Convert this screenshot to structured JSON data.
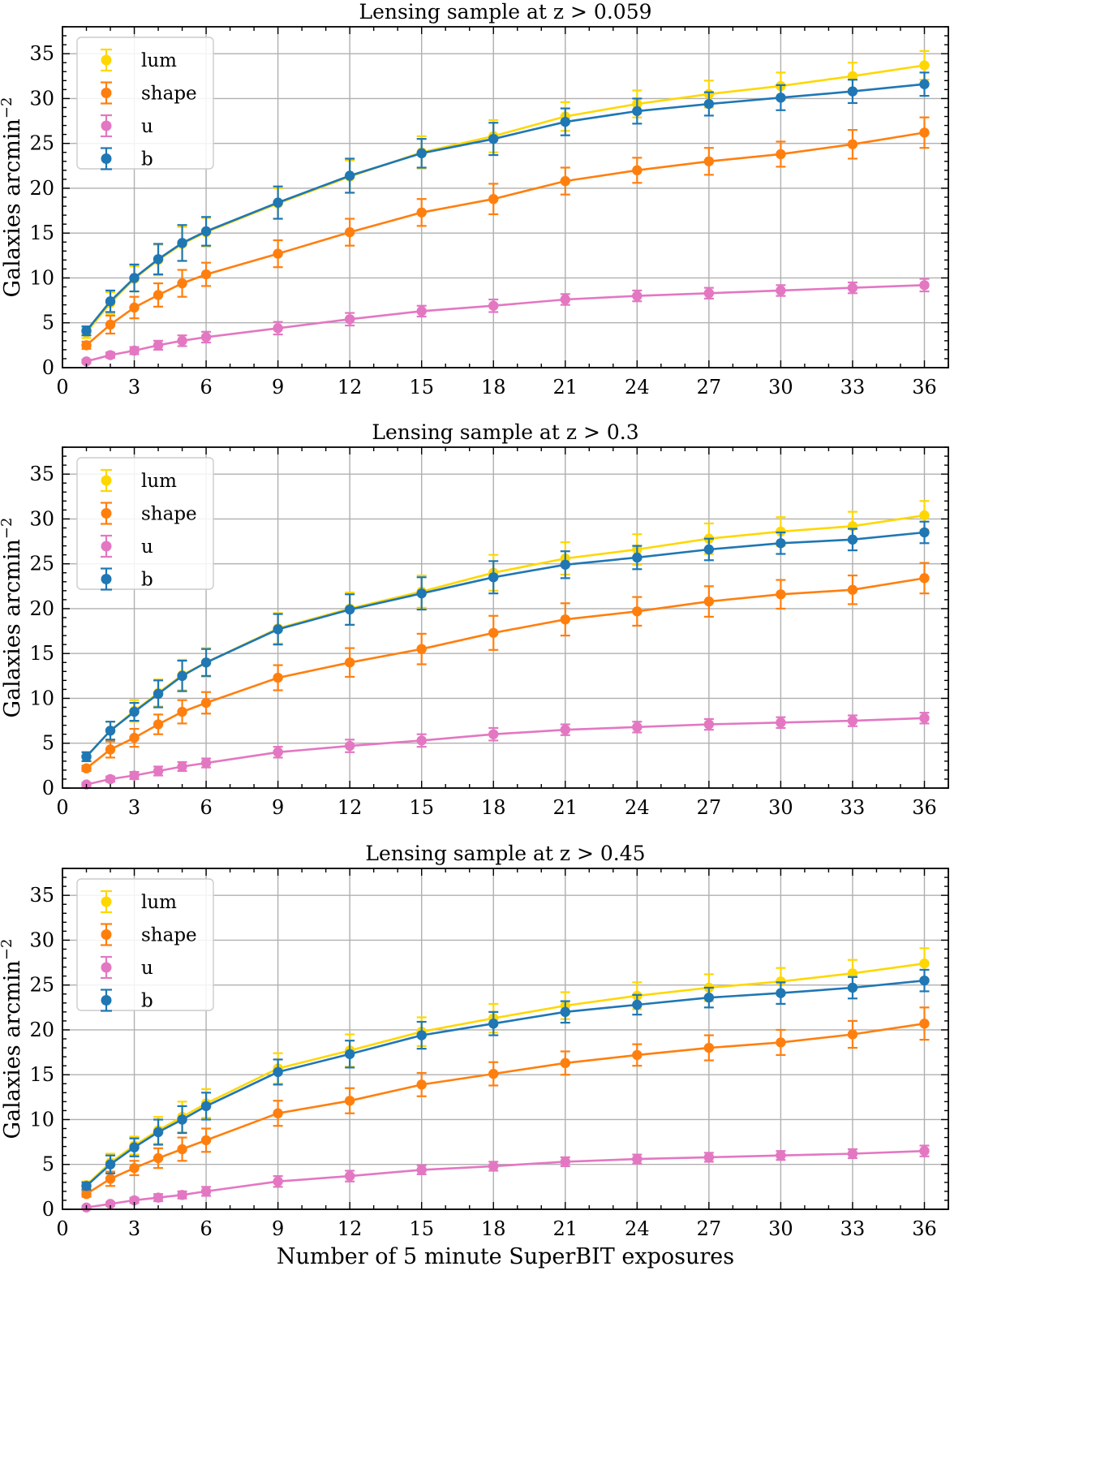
{
  "chart_data": [
    {
      "type": "line",
      "title": "Lensing sample at z > 0.059",
      "xlabel": "",
      "ylabel": "Galaxies arcmin−2",
      "xlim": [
        0,
        37
      ],
      "ylim": [
        0,
        38
      ],
      "xticks": [
        0,
        3,
        6,
        9,
        12,
        15,
        18,
        21,
        24,
        27,
        30,
        33,
        36
      ],
      "yticks": [
        0,
        5,
        10,
        15,
        20,
        25,
        30,
        35
      ],
      "grid": true,
      "legend_position": "top-left",
      "x": [
        1,
        2,
        3,
        4,
        5,
        6,
        9,
        12,
        15,
        18,
        21,
        24,
        27,
        30,
        33,
        36
      ],
      "series": [
        {
          "name": "lum",
          "color": "#FFD700",
          "values": [
            3.9,
            7.2,
            9.9,
            12.0,
            13.8,
            15.1,
            18.3,
            21.3,
            24.0,
            25.8,
            28.0,
            29.4,
            30.5,
            31.4,
            32.5,
            33.7
          ],
          "errors": [
            0.6,
            1.2,
            1.4,
            1.7,
            1.9,
            1.6,
            1.7,
            1.8,
            1.8,
            1.8,
            1.6,
            1.5,
            1.5,
            1.5,
            1.5,
            1.6
          ]
        },
        {
          "name": "shape",
          "color": "#FF7F0E",
          "values": [
            2.5,
            4.8,
            6.7,
            8.1,
            9.4,
            10.4,
            12.7,
            15.1,
            17.3,
            18.8,
            20.8,
            22.0,
            23.0,
            23.8,
            24.9,
            26.2
          ],
          "errors": [
            0.4,
            1.0,
            1.2,
            1.3,
            1.5,
            1.3,
            1.5,
            1.5,
            1.5,
            1.7,
            1.5,
            1.4,
            1.5,
            1.4,
            1.6,
            1.7
          ]
        },
        {
          "name": "u",
          "color": "#E377C2",
          "values": [
            0.7,
            1.4,
            1.9,
            2.5,
            3.0,
            3.4,
            4.4,
            5.4,
            6.3,
            6.9,
            7.6,
            8.0,
            8.3,
            8.6,
            8.9,
            9.2
          ],
          "errors": [
            0.2,
            0.3,
            0.4,
            0.5,
            0.6,
            0.6,
            0.7,
            0.7,
            0.6,
            0.7,
            0.6,
            0.6,
            0.6,
            0.6,
            0.6,
            0.7
          ]
        },
        {
          "name": "b",
          "color": "#1F77B4",
          "values": [
            4.1,
            7.4,
            10.0,
            12.1,
            13.9,
            15.2,
            18.4,
            21.4,
            23.9,
            25.5,
            27.4,
            28.6,
            29.4,
            30.1,
            30.8,
            31.6
          ],
          "errors": [
            0.5,
            1.2,
            1.5,
            1.7,
            2.0,
            1.6,
            1.8,
            1.9,
            1.6,
            1.8,
            1.5,
            1.4,
            1.3,
            1.4,
            1.3,
            1.3
          ]
        }
      ]
    },
    {
      "type": "line",
      "title": "Lensing sample at z > 0.3",
      "xlabel": "",
      "ylabel": "Galaxies arcmin−2",
      "xlim": [
        0,
        37
      ],
      "ylim": [
        0,
        38
      ],
      "xticks": [
        0,
        3,
        6,
        9,
        12,
        15,
        18,
        21,
        24,
        27,
        30,
        33,
        36
      ],
      "yticks": [
        0,
        5,
        10,
        15,
        20,
        25,
        30,
        35
      ],
      "grid": true,
      "legend_position": "top-left",
      "x": [
        1,
        2,
        3,
        4,
        5,
        6,
        9,
        12,
        15,
        18,
        21,
        24,
        27,
        30,
        33,
        36
      ],
      "series": [
        {
          "name": "lum",
          "color": "#FFD700",
          "values": [
            3.5,
            6.4,
            8.6,
            10.6,
            12.6,
            14.0,
            17.8,
            20.0,
            21.9,
            24.0,
            25.6,
            26.6,
            27.8,
            28.6,
            29.2,
            30.4
          ],
          "errors": [
            0.5,
            1.0,
            1.2,
            1.5,
            1.7,
            1.6,
            1.7,
            1.8,
            1.8,
            2.0,
            1.8,
            1.7,
            1.7,
            1.6,
            1.6,
            1.6
          ]
        },
        {
          "name": "shape",
          "color": "#FF7F0E",
          "values": [
            2.2,
            4.3,
            5.6,
            7.1,
            8.5,
            9.5,
            12.3,
            14.0,
            15.5,
            17.3,
            18.8,
            19.7,
            20.8,
            21.6,
            22.1,
            23.4
          ],
          "errors": [
            0.3,
            0.9,
            1.0,
            1.1,
            1.3,
            1.2,
            1.4,
            1.6,
            1.7,
            1.9,
            1.8,
            1.6,
            1.7,
            1.6,
            1.6,
            1.7
          ]
        },
        {
          "name": "u",
          "color": "#E377C2",
          "values": [
            0.4,
            1.0,
            1.4,
            1.9,
            2.4,
            2.8,
            4.0,
            4.7,
            5.3,
            6.0,
            6.5,
            6.8,
            7.1,
            7.3,
            7.5,
            7.8
          ],
          "errors": [
            0.2,
            0.3,
            0.4,
            0.5,
            0.5,
            0.5,
            0.6,
            0.7,
            0.7,
            0.7,
            0.6,
            0.6,
            0.6,
            0.6,
            0.6,
            0.6
          ]
        },
        {
          "name": "b",
          "color": "#1F77B4",
          "values": [
            3.5,
            6.4,
            8.5,
            10.5,
            12.5,
            14.0,
            17.7,
            19.9,
            21.7,
            23.5,
            24.9,
            25.7,
            26.6,
            27.3,
            27.7,
            28.5
          ],
          "errors": [
            0.5,
            1.0,
            1.0,
            1.5,
            1.7,
            1.5,
            1.7,
            1.7,
            1.8,
            1.8,
            1.5,
            1.3,
            1.2,
            1.2,
            1.2,
            1.2
          ]
        }
      ]
    },
    {
      "type": "line",
      "title": "Lensing sample at z > 0.45",
      "xlabel": "Number of 5 minute SuperBIT exposures",
      "ylabel": "Galaxies arcmin−2",
      "xlim": [
        0,
        37
      ],
      "ylim": [
        0,
        38
      ],
      "xticks": [
        0,
        3,
        6,
        9,
        12,
        15,
        18,
        21,
        24,
        27,
        30,
        33,
        36
      ],
      "yticks": [
        0,
        5,
        10,
        15,
        20,
        25,
        30,
        35
      ],
      "grid": true,
      "legend_position": "top-left",
      "x": [
        1,
        2,
        3,
        4,
        5,
        6,
        9,
        12,
        15,
        18,
        21,
        24,
        27,
        30,
        33,
        36
      ],
      "series": [
        {
          "name": "lum",
          "color": "#FFD700",
          "values": [
            2.7,
            5.2,
            7.1,
            8.8,
            10.3,
            11.8,
            15.7,
            17.7,
            19.8,
            21.3,
            22.7,
            23.8,
            24.7,
            25.4,
            26.3,
            27.4
          ],
          "errors": [
            0.4,
            1.0,
            1.0,
            1.5,
            1.7,
            1.6,
            1.7,
            1.8,
            1.6,
            1.6,
            1.5,
            1.5,
            1.5,
            1.5,
            1.5,
            1.7
          ]
        },
        {
          "name": "shape",
          "color": "#FF7F0E",
          "values": [
            1.7,
            3.4,
            4.6,
            5.7,
            6.7,
            7.7,
            10.7,
            12.1,
            13.9,
            15.1,
            16.3,
            17.2,
            18.0,
            18.6,
            19.5,
            20.7
          ],
          "errors": [
            0.3,
            0.8,
            0.8,
            1.1,
            1.3,
            1.3,
            1.4,
            1.4,
            1.3,
            1.3,
            1.3,
            1.2,
            1.4,
            1.4,
            1.5,
            1.8
          ]
        },
        {
          "name": "u",
          "color": "#E377C2",
          "values": [
            0.2,
            0.6,
            1.0,
            1.3,
            1.6,
            2.0,
            3.1,
            3.7,
            4.4,
            4.8,
            5.3,
            5.6,
            5.8,
            6.0,
            6.2,
            6.5
          ],
          "errors": [
            0.1,
            0.2,
            0.3,
            0.4,
            0.4,
            0.5,
            0.6,
            0.6,
            0.5,
            0.5,
            0.5,
            0.5,
            0.5,
            0.5,
            0.5,
            0.6
          ]
        },
        {
          "name": "b",
          "color": "#1F77B4",
          "values": [
            2.6,
            5.0,
            6.9,
            8.6,
            10.0,
            11.5,
            15.3,
            17.3,
            19.4,
            20.7,
            22.0,
            22.8,
            23.6,
            24.1,
            24.7,
            25.5
          ],
          "errors": [
            0.4,
            1.0,
            1.0,
            1.4,
            1.5,
            1.5,
            1.4,
            1.5,
            1.5,
            1.3,
            1.2,
            1.1,
            1.1,
            1.2,
            1.2,
            1.2
          ]
        }
      ]
    }
  ]
}
